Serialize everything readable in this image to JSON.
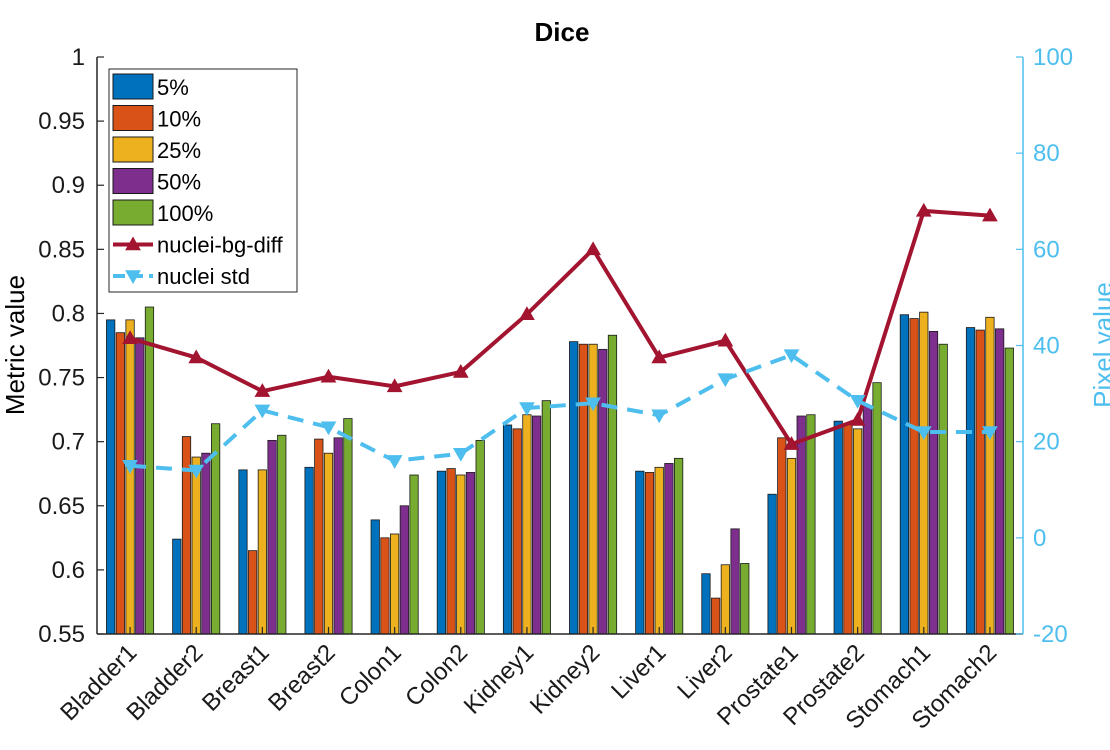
{
  "chart_data": {
    "type": "bar",
    "title": "Dice",
    "ylabel": "Metric value",
    "ylabel_right": "Pixel value",
    "ylim": [
      0.55,
      1.0
    ],
    "ylim_right": [
      -20,
      100
    ],
    "yticks": [
      "0.55",
      "0.6",
      "0.65",
      "0.7",
      "0.75",
      "0.8",
      "0.85",
      "0.9",
      "0.95",
      "1"
    ],
    "yticks_right": [
      "-20",
      "0",
      "20",
      "40",
      "60",
      "80",
      "100"
    ],
    "legend_position": "top-left",
    "categories": [
      "Bladder1",
      "Bladder2",
      "Breast1",
      "Breast2",
      "Colon1",
      "Colon2",
      "Kidney1",
      "Kidney2",
      "Liver1",
      "Liver2",
      "Prostate1",
      "Prostate2",
      "Stomach1",
      "Stomach2"
    ],
    "series": [
      {
        "name": "5%",
        "color": "#0072bd",
        "values": [
          0.795,
          0.624,
          0.678,
          0.68,
          0.639,
          0.677,
          0.713,
          0.778,
          0.677,
          0.597,
          0.659,
          0.716,
          0.799,
          0.789
        ]
      },
      {
        "name": "10%",
        "color": "#d95319",
        "values": [
          0.785,
          0.704,
          0.615,
          0.702,
          0.625,
          0.679,
          0.71,
          0.776,
          0.676,
          0.578,
          0.703,
          0.714,
          0.796,
          0.787
        ]
      },
      {
        "name": "25%",
        "color": "#edb120",
        "values": [
          0.795,
          0.688,
          0.678,
          0.691,
          0.628,
          0.674,
          0.721,
          0.776,
          0.68,
          0.604,
          0.687,
          0.71,
          0.801,
          0.797
        ]
      },
      {
        "name": "50%",
        "color": "#7e2f8e",
        "values": [
          0.781,
          0.691,
          0.701,
          0.703,
          0.65,
          0.676,
          0.72,
          0.772,
          0.683,
          0.632,
          0.72,
          0.728,
          0.786,
          0.788
        ]
      },
      {
        "name": "100%",
        "color": "#77ac30",
        "values": [
          0.805,
          0.714,
          0.705,
          0.718,
          0.674,
          0.701,
          0.732,
          0.783,
          0.687,
          0.605,
          0.721,
          0.746,
          0.776,
          0.773
        ]
      }
    ],
    "lines": [
      {
        "name": "nuclei-bg-diff",
        "color": "#a2142f",
        "axis": "right",
        "style": "solid",
        "marker": "triangle-up",
        "values": [
          41.5,
          37.5,
          30.5,
          33.5,
          31.5,
          34.5,
          46.5,
          60,
          37.5,
          41,
          19.5,
          24.5,
          68,
          67
        ]
      },
      {
        "name": "nuclei std",
        "color": "#4dbeee",
        "axis": "right",
        "style": "dashed",
        "marker": "triangle-down",
        "values": [
          15,
          14,
          26.5,
          23,
          16,
          17.5,
          27,
          28,
          25.5,
          33,
          38,
          28.5,
          22,
          22
        ]
      }
    ]
  }
}
